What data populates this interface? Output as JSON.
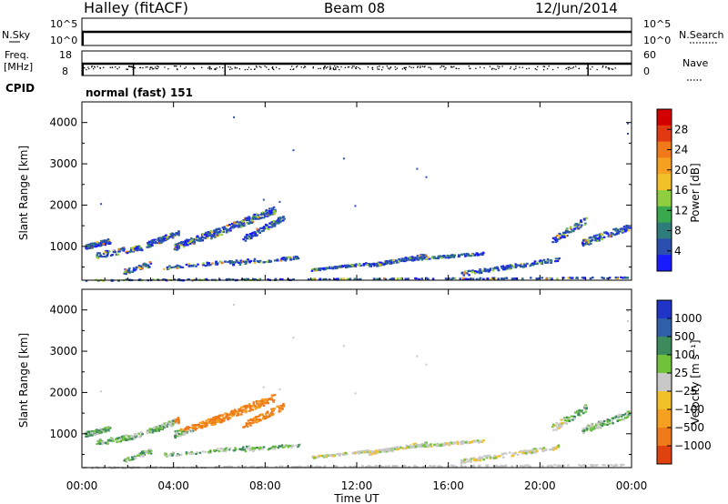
{
  "header": {
    "title": "Halley (fitACF)",
    "beam": "Beam 08",
    "date": "12/Jun/2014"
  },
  "noise_panel": {
    "left_label": "N.Sky",
    "right_label": "N.Search",
    "left_ticks": [
      "10^5",
      "10^0"
    ],
    "right_ticks": [
      "10^5",
      "10^0"
    ]
  },
  "freq_panel": {
    "left_label_1": "Freq.",
    "left_label_2": "[MHz]",
    "right_label": "Nave",
    "left_ticks": [
      "18",
      "8"
    ],
    "right_ticks": [
      "60",
      "0"
    ]
  },
  "cpid": {
    "label": "CPID",
    "value": "normal (fast) 151"
  },
  "chart_data": [
    {
      "type": "heatmap",
      "name": "power",
      "ylabel": "Slant Range [km]",
      "ylim": [
        180,
        4500
      ],
      "yticks": [
        1000,
        2000,
        3000,
        4000
      ],
      "xlim": [
        "00:00",
        "24:00"
      ],
      "colorbar": {
        "label": "Power [dB]",
        "ticks": [
          "4",
          "8",
          "12",
          "16",
          "20",
          "24",
          "28"
        ],
        "colors": [
          "#1a1aff",
          "#2b4fae",
          "#2e7d7a",
          "#3aa84c",
          "#8fcf3f",
          "#f2c028",
          "#f5a021",
          "#f07a1a",
          "#e23a10",
          "#d40000"
        ]
      }
    },
    {
      "type": "heatmap",
      "name": "velocity",
      "ylabel": "Slant Range [km]",
      "ylim": [
        180,
        4500
      ],
      "yticks": [
        1000,
        2000,
        3000,
        4000
      ],
      "xlim": [
        "00:00",
        "24:00"
      ],
      "xlabel": "Time UT",
      "xticks": [
        "00:00",
        "04:00",
        "08:00",
        "12:00",
        "16:00",
        "20:00",
        "00:00"
      ],
      "colorbar": {
        "label": "Velocity [m s⁻¹]",
        "ticks": [
          "1000",
          "500",
          "100",
          "25",
          "−25",
          "−100",
          "−500",
          "−1000"
        ],
        "colors": [
          "#2035c8",
          "#2f5fa8",
          "#3d8a5c",
          "#6fc23a",
          "#c8c8c8",
          "#f2c028",
          "#f5a021",
          "#ef7a1a",
          "#e0420f"
        ]
      }
    }
  ]
}
